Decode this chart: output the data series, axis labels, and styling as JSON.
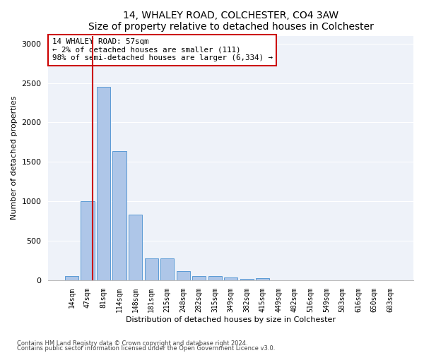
{
  "title1": "14, WHALEY ROAD, COLCHESTER, CO4 3AW",
  "title2": "Size of property relative to detached houses in Colchester",
  "xlabel": "Distribution of detached houses by size in Colchester",
  "ylabel": "Number of detached properties",
  "categories": [
    "14sqm",
    "47sqm",
    "81sqm",
    "114sqm",
    "148sqm",
    "181sqm",
    "215sqm",
    "248sqm",
    "282sqm",
    "315sqm",
    "349sqm",
    "382sqm",
    "415sqm",
    "449sqm",
    "482sqm",
    "516sqm",
    "549sqm",
    "583sqm",
    "616sqm",
    "650sqm",
    "683sqm"
  ],
  "values": [
    50,
    1000,
    2450,
    1640,
    830,
    280,
    280,
    115,
    50,
    50,
    35,
    20,
    30,
    0,
    0,
    0,
    0,
    0,
    0,
    0,
    0
  ],
  "bar_color": "#aec6e8",
  "bar_edge_color": "#5b9bd5",
  "vline_color": "#cc0000",
  "annotation_text": "14 WHALEY ROAD: 57sqm\n← 2% of detached houses are smaller (111)\n98% of semi-detached houses are larger (6,334) →",
  "annotation_box_color": "#ffffff",
  "annotation_box_edge_color": "#cc0000",
  "ylim": [
    0,
    3100
  ],
  "background_color": "#eef2f9",
  "footnote1": "Contains HM Land Registry data © Crown copyright and database right 2024.",
  "footnote2": "Contains public sector information licensed under the Open Government Licence v3.0."
}
